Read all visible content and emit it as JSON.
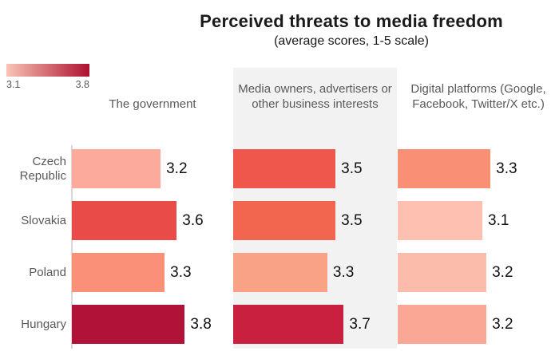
{
  "title": "Perceived threats to media freedom",
  "subtitle": "(average scores, 1-5 scale)",
  "legend": {
    "min_label": "3.1",
    "max_label": "3.8",
    "gradient_start": "#f9c4b6",
    "gradient_end": "#ad1130"
  },
  "colors": {
    "panel_background": "#f2f2f2",
    "axis_line": "#d9d9d9",
    "label_text": "#595959",
    "value_text": "#111111"
  },
  "chart_data": {
    "type": "bar",
    "orientation": "horizontal",
    "title": "Perceived threats to media freedom",
    "subtitle": "(average scores, 1-5 scale)",
    "categories": [
      "Czech Republic",
      "Slovakia",
      "Poland",
      "Hungary"
    ],
    "value_range": [
      1,
      5
    ],
    "grid": false,
    "legend_position": "top-left",
    "series": [
      {
        "name": "The government",
        "values": [
          3.2,
          3.6,
          3.3,
          3.8
        ],
        "colors": [
          "#fcaa9b",
          "#e94b48",
          "#fa9078",
          "#b11237"
        ]
      },
      {
        "name": "Media owners, advertisers or other business interests",
        "values": [
          3.5,
          3.5,
          3.3,
          3.7
        ],
        "colors": [
          "#ef574d",
          "#f2654f",
          "#faa286",
          "#c9203f"
        ]
      },
      {
        "name": "Digital platforms (Google, Facebook, Twitter/X etc.)",
        "values": [
          3.3,
          3.1,
          3.2,
          3.2
        ],
        "colors": [
          "#f98f75",
          "#fdc0b1",
          "#fcbcab",
          "#fba795"
        ]
      }
    ]
  }
}
